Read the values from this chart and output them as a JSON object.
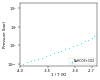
{
  "title": "",
  "xlabel": "1 / T (K)",
  "ylabel": "Pressure (bar)",
  "dot_color": "#55ddee",
  "dot_size": 0.8,
  "background_color": "#ffffff",
  "legend_label": "NaHCO3+CO2",
  "xlim": [
    -0.004,
    -0.0026
  ],
  "ylim_log": [
    0.08,
    200
  ],
  "x_ticks": [
    -0.004,
    -0.0035,
    -0.003,
    -0.0027
  ],
  "x_tick_labels": [
    "-4.0",
    "-3.5",
    "-3.0",
    "-2.7"
  ],
  "data_x": [
    -0.00395,
    -0.00388,
    -0.00381,
    -0.00374,
    -0.00367,
    -0.0036,
    -0.00353,
    -0.00346,
    -0.00339,
    -0.00332,
    -0.00325,
    -0.00318,
    -0.00311,
    -0.00304,
    -0.00297,
    -0.0029,
    -0.00283,
    -0.00276,
    -0.0027,
    -0.00265,
    -0.0026,
    -0.00255,
    -0.0025,
    -0.00246,
    -0.00242,
    -0.00238,
    -0.00235,
    -0.00232,
    -0.00229,
    -0.00227
  ],
  "data_y": [
    0.1,
    0.12,
    0.14,
    0.16,
    0.19,
    0.22,
    0.26,
    0.31,
    0.37,
    0.44,
    0.53,
    0.64,
    0.77,
    0.93,
    1.12,
    1.36,
    1.65,
    2.0,
    2.5,
    3.1,
    3.9,
    4.9,
    6.2,
    8.0,
    11.0,
    16.0,
    22.0,
    32.0,
    48.0,
    70.0
  ]
}
